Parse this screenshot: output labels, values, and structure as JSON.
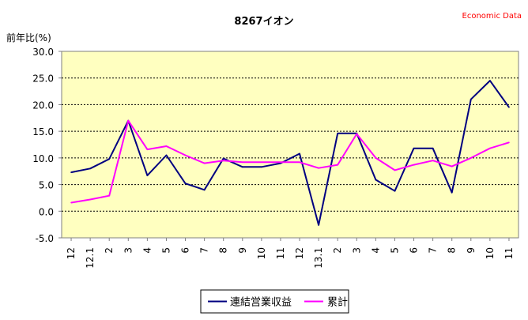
{
  "chart_data": {
    "type": "line",
    "title": "8267イオン",
    "watermark": "Economic Data",
    "ylabel": "前年比(%)",
    "xlabel": "",
    "ylim": [
      -5.0,
      30.0
    ],
    "ytick_step": 5.0,
    "yticks": [
      "30.0",
      "25.0",
      "20.0",
      "15.0",
      "10.0",
      "5.0",
      "0.0",
      "-5.0"
    ],
    "categories": [
      "12",
      "12.1",
      "2",
      "3",
      "4",
      "5",
      "6",
      "7",
      "8",
      "9",
      "10",
      "11",
      "12",
      "13.1",
      "2",
      "3",
      "4",
      "5",
      "6",
      "7",
      "8",
      "9",
      "10",
      "11"
    ],
    "grid": true,
    "legend_position": "bottom",
    "plot_background": "#ffffc0",
    "series": [
      {
        "name": "連結営業収益",
        "color": "#000080",
        "values": [
          7.3,
          8.0,
          9.8,
          17.0,
          6.7,
          10.5,
          5.2,
          4.0,
          9.9,
          8.3,
          8.3,
          9.0,
          10.8,
          -2.6,
          14.6,
          14.6,
          5.9,
          3.8,
          11.8,
          11.8,
          3.5,
          21.0,
          24.5,
          19.5
        ]
      },
      {
        "name": "累計",
        "color": "#ff00ff",
        "values": [
          1.6,
          2.2,
          2.9,
          17.0,
          11.6,
          12.2,
          10.5,
          9.0,
          9.5,
          9.2,
          9.2,
          9.2,
          9.2,
          8.1,
          8.7,
          14.5,
          10.0,
          7.7,
          8.7,
          9.5,
          8.4,
          10.0,
          11.8,
          12.9
        ]
      }
    ]
  }
}
